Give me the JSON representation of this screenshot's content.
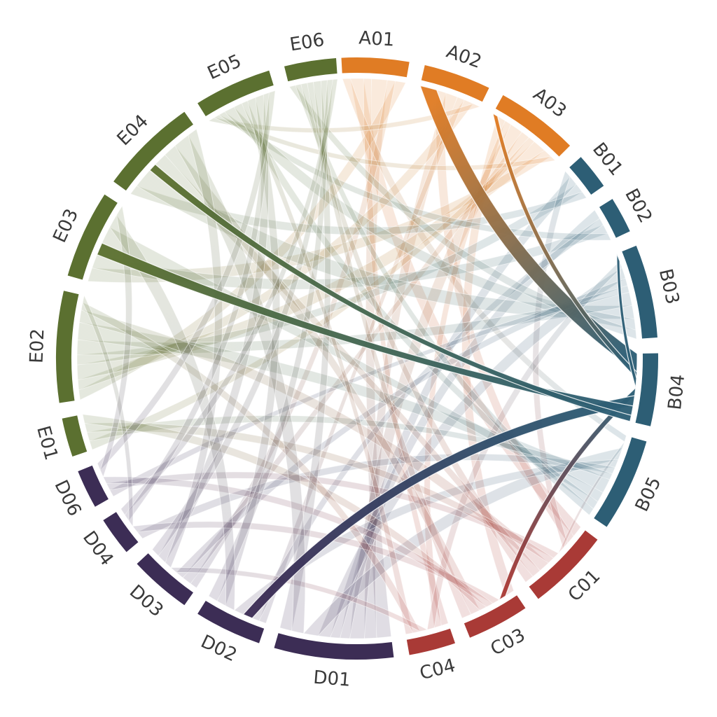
{
  "chart_data": {
    "type": "chord",
    "title": "",
    "highlighted_node": "B04",
    "background_color": "#ffffff",
    "label_color": "#3a3a3a",
    "groups": [
      {
        "id": "A",
        "color": "#E07C24",
        "nodes": [
          "A01",
          "A02",
          "A03"
        ]
      },
      {
        "id": "B",
        "color": "#2D5E75",
        "nodes": [
          "B01",
          "B02",
          "B03",
          "B04",
          "B05"
        ]
      },
      {
        "id": "C",
        "color": "#A93A36",
        "nodes": [
          "C01",
          "C03",
          "C04"
        ]
      },
      {
        "id": "D",
        "color": "#3C2D55",
        "nodes": [
          "D01",
          "D02",
          "D03",
          "D04",
          "D06"
        ]
      },
      {
        "id": "E",
        "color": "#5B7030",
        "nodes": [
          "E01",
          "E02",
          "E03",
          "E04",
          "E05",
          "E06"
        ]
      }
    ],
    "nodes": [
      {
        "id": "A01",
        "group": "A",
        "start": -3,
        "end": 10
      },
      {
        "id": "A02",
        "group": "A",
        "start": 13,
        "end": 26
      },
      {
        "id": "A03",
        "group": "A",
        "start": 29,
        "end": 45
      },
      {
        "id": "B01",
        "group": "B",
        "start": 48,
        "end": 55
      },
      {
        "id": "B02",
        "group": "B",
        "start": 58,
        "end": 65
      },
      {
        "id": "B03",
        "group": "B",
        "start": 68,
        "end": 86
      },
      {
        "id": "B04",
        "group": "B",
        "start": 89,
        "end": 103
      },
      {
        "id": "B05",
        "group": "B",
        "start": 106,
        "end": 124
      },
      {
        "id": "C01",
        "group": "C",
        "start": 127,
        "end": 143
      },
      {
        "id": "C03",
        "group": "C",
        "start": 146,
        "end": 158
      },
      {
        "id": "C04",
        "group": "C",
        "start": 161,
        "end": 170
      },
      {
        "id": "D01",
        "group": "D",
        "start": 173,
        "end": 196
      },
      {
        "id": "D02",
        "group": "D",
        "start": 199,
        "end": 212
      },
      {
        "id": "D03",
        "group": "D",
        "start": 215,
        "end": 227
      },
      {
        "id": "D04",
        "group": "D",
        "start": 230,
        "end": 237.5
      },
      {
        "id": "D06",
        "group": "D",
        "start": 240.5,
        "end": 248
      },
      {
        "id": "E01",
        "group": "E",
        "start": 251,
        "end": 258.5
      },
      {
        "id": "E02",
        "group": "E",
        "start": 261.5,
        "end": 283
      },
      {
        "id": "E03",
        "group": "E",
        "start": 286,
        "end": 303
      },
      {
        "id": "E04",
        "group": "E",
        "start": 306,
        "end": 325
      },
      {
        "id": "E05",
        "group": "E",
        "start": 328,
        "end": 343
      },
      {
        "id": "E06",
        "group": "E",
        "start": 346,
        "end": 356
      }
    ],
    "links": [
      {
        "source": "A01",
        "target": "C01",
        "value": 2.5
      },
      {
        "source": "A01",
        "target": "D01",
        "value": 3
      },
      {
        "source": "A01",
        "target": "E02",
        "value": 2
      },
      {
        "source": "A01",
        "target": "C04",
        "value": 1.5
      },
      {
        "source": "A01",
        "target": "D03",
        "value": 1.5
      },
      {
        "source": "A01",
        "target": "B05",
        "value": 1.5
      },
      {
        "source": "A02",
        "target": "D01",
        "value": 2.5
      },
      {
        "source": "A02",
        "target": "C01",
        "value": 2
      },
      {
        "source": "A02",
        "target": "E02",
        "value": 2
      },
      {
        "source": "A02",
        "target": "D02",
        "value": 1.5
      },
      {
        "source": "A02",
        "target": "E05",
        "value": 1.5
      },
      {
        "source": "A03",
        "target": "E02",
        "value": 3
      },
      {
        "source": "A03",
        "target": "D01",
        "value": 3
      },
      {
        "source": "A03",
        "target": "C03",
        "value": 2
      },
      {
        "source": "A03",
        "target": "E03",
        "value": 2
      },
      {
        "source": "A03",
        "target": "D03",
        "value": 2
      },
      {
        "source": "A03",
        "target": "C04",
        "value": 1.5
      },
      {
        "source": "A03",
        "target": "E05",
        "value": 1.3
      },
      {
        "source": "A03",
        "target": "E01",
        "value": 1.5
      },
      {
        "source": "B01",
        "target": "E02",
        "value": 2
      },
      {
        "source": "B01",
        "target": "D01",
        "value": 2
      },
      {
        "source": "B01",
        "target": "E04",
        "value": 1.5
      },
      {
        "source": "B01",
        "target": "C01",
        "value": 1.5
      },
      {
        "source": "B02",
        "target": "E03",
        "value": 2
      },
      {
        "source": "B02",
        "target": "D01",
        "value": 2
      },
      {
        "source": "B02",
        "target": "E05",
        "value": 1.5
      },
      {
        "source": "B02",
        "target": "D02",
        "value": 1.5
      },
      {
        "source": "B03",
        "target": "E04",
        "value": 3
      },
      {
        "source": "B03",
        "target": "E05",
        "value": 2.5
      },
      {
        "source": "B03",
        "target": "E02",
        "value": 3
      },
      {
        "source": "B03",
        "target": "D01",
        "value": 2.5
      },
      {
        "source": "B03",
        "target": "E06",
        "value": 2
      },
      {
        "source": "B03",
        "target": "D03",
        "value": 1.7
      },
      {
        "source": "B03",
        "target": "C04",
        "value": 1.5
      },
      {
        "source": "B03",
        "target": "D06",
        "value": 1.5
      },
      {
        "source": "B05",
        "target": "E02",
        "value": 3.5
      },
      {
        "source": "B05",
        "target": "E03",
        "value": 2.5
      },
      {
        "source": "B05",
        "target": "D01",
        "value": 3
      },
      {
        "source": "B05",
        "target": "D02",
        "value": 2
      },
      {
        "source": "B05",
        "target": "E05",
        "value": 2
      },
      {
        "source": "B05",
        "target": "C01",
        "value": 1.5
      },
      {
        "source": "B05",
        "target": "E06",
        "value": 1.8
      },
      {
        "source": "B05",
        "target": "D04",
        "value": 1.7
      },
      {
        "source": "B05",
        "target": "E01",
        "value": 1.5
      },
      {
        "source": "C01",
        "target": "E02",
        "value": 2.5
      },
      {
        "source": "C01",
        "target": "E06",
        "value": 2
      },
      {
        "source": "C01",
        "target": "D06",
        "value": 1.5
      },
      {
        "source": "C01",
        "target": "E04",
        "value": 2
      },
      {
        "source": "C01",
        "target": "E01",
        "value": 1.5
      },
      {
        "source": "C03",
        "target": "E06",
        "value": 2
      },
      {
        "source": "C03",
        "target": "E04",
        "value": 2
      },
      {
        "source": "C03",
        "target": "D04",
        "value": 1.5
      },
      {
        "source": "C03",
        "target": "E01",
        "value": 1.5
      },
      {
        "source": "C03",
        "target": "D06",
        "value": 1.5
      },
      {
        "source": "C04",
        "target": "E05",
        "value": 1.5
      },
      {
        "source": "C04",
        "target": "E02",
        "value": 1.5
      },
      {
        "source": "C04",
        "target": "D03",
        "value": 1.5
      },
      {
        "source": "D01",
        "target": "E06",
        "value": 2.5
      },
      {
        "source": "D01",
        "target": "E04",
        "value": 2.5
      },
      {
        "source": "D02",
        "target": "E05",
        "value": 2
      },
      {
        "source": "D02",
        "target": "E06",
        "value": 2
      },
      {
        "source": "D02",
        "target": "E03",
        "value": 2
      },
      {
        "source": "D03",
        "target": "E05",
        "value": 2
      },
      {
        "source": "D03",
        "target": "E06",
        "value": 1.8
      },
      {
        "source": "D03",
        "target": "E04",
        "value": 1.5
      },
      {
        "source": "D04",
        "target": "E06",
        "value": 1.5
      },
      {
        "source": "D04",
        "target": "E05",
        "value": 1.4
      },
      {
        "source": "D04",
        "target": "E02",
        "value": 1.4
      },
      {
        "source": "D06",
        "target": "E05",
        "value": 1.5
      },
      {
        "source": "D06",
        "target": "E03",
        "value": 1.5
      },
      {
        "source": "A02",
        "target": "B04",
        "value": 3.5,
        "h": true
      },
      {
        "source": "A03",
        "target": "B04",
        "value": 1.2,
        "h": true
      },
      {
        "source": "B03",
        "target": "B04",
        "value": 1.8,
        "h": true
      },
      {
        "source": "C03",
        "target": "B04",
        "value": 1.5,
        "h": true
      },
      {
        "source": "D02",
        "target": "B04",
        "value": 2.0,
        "h": true
      },
      {
        "source": "E03",
        "target": "B04",
        "value": 1.8,
        "h": true
      },
      {
        "source": "E04",
        "target": "B04",
        "value": 1.2,
        "h": true
      }
    ]
  }
}
